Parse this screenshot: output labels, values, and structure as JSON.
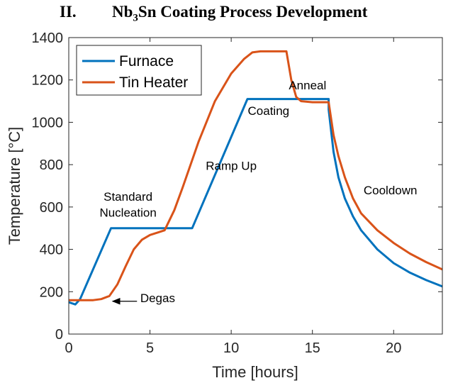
{
  "heading": {
    "number": "II.",
    "title_prefix": "Nb",
    "title_subscript": "3",
    "title_suffix": "Sn Coating Process Development"
  },
  "chart_data": {
    "type": "line",
    "xlabel": "Time [hours]",
    "ylabel": "Temperature [°C]",
    "xlim": [
      0,
      23
    ],
    "ylim": [
      0,
      1400
    ],
    "x_ticks": [
      0,
      5,
      10,
      15,
      20
    ],
    "y_ticks": [
      0,
      200,
      400,
      600,
      800,
      1000,
      1200,
      1400
    ],
    "grid": false,
    "legend_position": "top-left",
    "series": [
      {
        "name": "Furnace",
        "color": "#0072BD",
        "x": [
          0,
          0.4,
          0.7,
          2.6,
          7.6,
          11.0,
          16.0,
          16.0,
          16.3,
          16.6,
          17.0,
          17.5,
          18.0,
          19.0,
          20.0,
          21.0,
          22.0,
          23.0
        ],
        "y": [
          150,
          140,
          165,
          500,
          500,
          1110,
          1110,
          1060,
          860,
          740,
          640,
          555,
          490,
          400,
          335,
          290,
          255,
          225
        ]
      },
      {
        "name": "Tin Heater",
        "color": "#D95319",
        "x": [
          0,
          1.5,
          2.0,
          2.5,
          3.0,
          3.5,
          4.0,
          4.5,
          5.0,
          5.5,
          5.9,
          6.5,
          7.0,
          8.0,
          9.0,
          10.0,
          10.8,
          11.3,
          11.8,
          12.3,
          13.4,
          13.7,
          14.0,
          14.3,
          15.0,
          16.0,
          16.3,
          16.6,
          17.0,
          17.5,
          18.0,
          19.0,
          20.0,
          21.0,
          22.0,
          23.0
        ],
        "y": [
          160,
          160,
          165,
          180,
          235,
          320,
          400,
          445,
          468,
          480,
          490,
          585,
          690,
          910,
          1100,
          1230,
          1300,
          1330,
          1335,
          1335,
          1335,
          1200,
          1120,
          1100,
          1095,
          1095,
          940,
          840,
          740,
          640,
          570,
          490,
          430,
          380,
          340,
          305
        ]
      }
    ],
    "annotations": [
      {
        "id": "nucleation-line1",
        "text": "Standard",
        "x": 3.65,
        "y": 630
      },
      {
        "id": "nucleation-line2",
        "text": "Nucleation",
        "x": 3.65,
        "y": 555
      },
      {
        "id": "ramp-up",
        "text": "Ramp Up",
        "x": 10.0,
        "y": 775
      },
      {
        "id": "coating",
        "text": "Coating",
        "x": 12.3,
        "y": 1035
      },
      {
        "id": "anneal",
        "text": "Anneal",
        "x": 14.7,
        "y": 1155
      },
      {
        "id": "cooldown",
        "text": "Cooldown",
        "x": 19.8,
        "y": 660
      },
      {
        "id": "degas",
        "text": "Degas",
        "x": 4.4,
        "y": 150
      }
    ],
    "arrow": {
      "from": [
        4.2,
        155
      ],
      "to": [
        2.7,
        155
      ]
    }
  }
}
